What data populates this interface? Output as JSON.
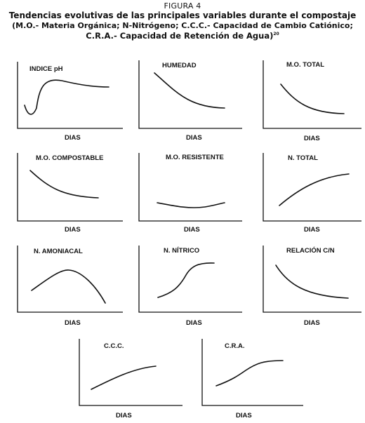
{
  "header": {
    "figure_label": "FIGURA 4",
    "title_line1": "Tendencias evolutivas de las principales variables durante el compostaje",
    "title_line2": "(M.O.- Materia Orgánica; N-Nitrógeno; C.C.C.- Capacidad de Cambio Catiónico;",
    "title_line3": "C.R.A.- Capacidad de Retención de Agua)",
    "reference": "20"
  },
  "panels": [
    {
      "title": "INDICE pH",
      "xlabel": "DIAS",
      "trend": "dip-then-rise-plateau"
    },
    {
      "title": "HUMEDAD",
      "xlabel": "DIAS",
      "trend": "decreasing"
    },
    {
      "title": "M.O. TOTAL",
      "xlabel": "DIAS",
      "trend": "decreasing"
    },
    {
      "title": "M.O. COMPOSTABLE",
      "xlabel": "DIAS",
      "trend": "decreasing"
    },
    {
      "title": "M.O. RESISTENTE",
      "xlabel": "DIAS",
      "trend": "flat-slight-dip"
    },
    {
      "title": "N. TOTAL",
      "xlabel": "DIAS",
      "trend": "increasing"
    },
    {
      "title": "N. AMONIACAL",
      "xlabel": "DIAS",
      "trend": "rise-then-fall"
    },
    {
      "title": "N. NÍTRICO",
      "xlabel": "DIAS",
      "trend": "sigmoid-increase"
    },
    {
      "title": "RELACIÓN C/N",
      "xlabel": "DIAS",
      "trend": "decreasing"
    },
    {
      "title": "C.C.C.",
      "xlabel": "DIAS",
      "trend": "increasing"
    },
    {
      "title": "C.R.A.",
      "xlabel": "DIAS",
      "trend": "sigmoid-increase"
    }
  ]
}
